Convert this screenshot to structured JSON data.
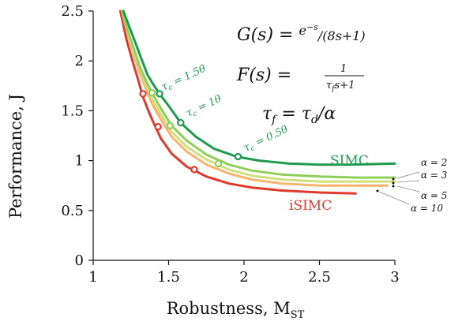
{
  "chart_data": {
    "type": "line",
    "xlabel": "Robustness, M",
    "xlabel_sub": "ST",
    "ylabel": "Performance, J",
    "xlim": [
      1,
      3
    ],
    "ylim": [
      0,
      2.5
    ],
    "xticks": [
      1,
      1.5,
      2,
      2.5,
      3
    ],
    "yticks": [
      0,
      0.5,
      1,
      1.5,
      2,
      2.5
    ],
    "xtick_labels": [
      "1",
      "1.5",
      "2",
      "2.5",
      "3"
    ],
    "ytick_labels": [
      "0",
      "0.5",
      "1",
      "1.5",
      "2",
      "2.5"
    ],
    "grid": false,
    "annotations": {
      "G": "G(s) = e^{-s}/(8s+1)",
      "F": "F(s) = 1/(τ_f s + 1)",
      "tauf": "τ_f = τ_d/α",
      "G_lhs": "G(s) = ",
      "G_num": "e",
      "G_exp": "−s",
      "G_den": "/(8s+1)",
      "F_lhs": "F(s) = ",
      "F_num": "1",
      "F_den": "τ",
      "F_den_sub": "f",
      "F_den_rest": "s+1",
      "tauf_lhs": "τ",
      "tauf_lhs_sub": "f",
      "tauf_rhs": " = τ",
      "tauf_rhs_sub": "d",
      "tauf_tail": "/α",
      "tau_labels": [
        {
          "text": "τc = 1.5θ",
          "at": [
            1.46,
            1.69
          ]
        },
        {
          "text": "τc = 1θ",
          "at": [
            1.6,
            1.4
          ]
        },
        {
          "text": "τc = 0.5θ",
          "at": [
            1.98,
            1.06
          ]
        }
      ],
      "alpha_labels": [
        "α = 2",
        "α = 3",
        "α = 5",
        "α = 10"
      ],
      "tau_prefix": "τ",
      "tau_sub": "c",
      "tau_1_5": " = 1.5θ",
      "tau_1": " = 1θ",
      "tau_0_5": " = 0.5θ"
    },
    "series": [
      {
        "name": "SIMC",
        "color": "#1f9a4e",
        "x": [
          1.2,
          1.24,
          1.28,
          1.32,
          1.36,
          1.4,
          1.44,
          1.5,
          1.58,
          1.68,
          1.8,
          1.95,
          2.1,
          2.3,
          2.5,
          2.7,
          3.0
        ],
        "y": [
          2.5,
          2.34,
          2.18,
          2.02,
          1.86,
          1.76,
          1.67,
          1.55,
          1.38,
          1.24,
          1.12,
          1.04,
          1.0,
          0.97,
          0.96,
          0.96,
          0.97
        ],
        "markers": [
          [
            1.44,
            1.67
          ],
          [
            1.58,
            1.38
          ],
          [
            1.96,
            1.04
          ]
        ]
      },
      {
        "name": "α = 2",
        "color": "#8fcf5a",
        "x": [
          1.19,
          1.23,
          1.27,
          1.31,
          1.35,
          1.39,
          1.45,
          1.52,
          1.62,
          1.75,
          1.9,
          2.05,
          2.25,
          2.5,
          2.75,
          3.0
        ],
        "y": [
          2.5,
          2.3,
          2.12,
          1.94,
          1.8,
          1.68,
          1.52,
          1.35,
          1.2,
          1.06,
          0.96,
          0.9,
          0.86,
          0.84,
          0.83,
          0.83
        ],
        "markers": [
          [
            1.39,
            1.68
          ],
          [
            1.51,
            1.35
          ],
          [
            1.83,
            0.97
          ]
        ]
      },
      {
        "name": "α = 3",
        "color": "#cfe07a",
        "x": [
          1.19,
          1.23,
          1.27,
          1.31,
          1.35,
          1.39,
          1.45,
          1.52,
          1.62,
          1.75,
          1.9,
          2.05,
          2.25,
          2.5,
          2.75,
          3.0
        ],
        "y": [
          2.5,
          2.28,
          2.09,
          1.91,
          1.76,
          1.62,
          1.46,
          1.29,
          1.14,
          1.01,
          0.91,
          0.85,
          0.81,
          0.79,
          0.79,
          0.79
        ],
        "markers": []
      },
      {
        "name": "α = 5",
        "color": "#f9b36a",
        "x": [
          1.19,
          1.23,
          1.27,
          1.31,
          1.35,
          1.39,
          1.45,
          1.52,
          1.62,
          1.75,
          1.9,
          2.05,
          2.25,
          2.5,
          2.75,
          2.95
        ],
        "y": [
          2.5,
          2.26,
          2.06,
          1.87,
          1.72,
          1.57,
          1.41,
          1.24,
          1.09,
          0.96,
          0.87,
          0.81,
          0.77,
          0.75,
          0.75,
          0.75
        ],
        "markers": []
      },
      {
        "name": "iSIMC",
        "color": "#e03a2c",
        "x": [
          1.18,
          1.22,
          1.26,
          1.3,
          1.33,
          1.36,
          1.4,
          1.45,
          1.52,
          1.62,
          1.75,
          1.9,
          2.05,
          2.25,
          2.5,
          2.74
        ],
        "y": [
          2.5,
          2.22,
          2.0,
          1.8,
          1.64,
          1.52,
          1.38,
          1.22,
          1.07,
          0.94,
          0.84,
          0.77,
          0.73,
          0.7,
          0.68,
          0.67
        ],
        "markers": [
          [
            1.33,
            1.67
          ],
          [
            1.43,
            1.34
          ],
          [
            1.67,
            0.91
          ]
        ]
      }
    ],
    "series_labels": [
      {
        "text": "SIMC",
        "color": "#1f9a4e",
        "at": [
          2.56,
          1.02
        ]
      },
      {
        "text": "iSIMC",
        "color": "#e03a2c",
        "at": [
          2.3,
          0.57
        ]
      }
    ]
  }
}
